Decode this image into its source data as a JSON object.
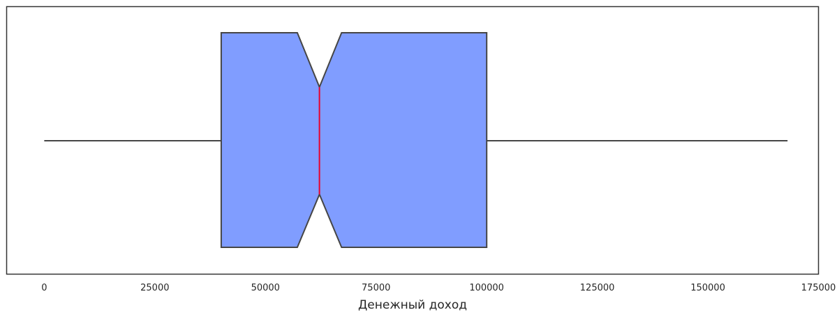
{
  "chart_data": {
    "type": "boxplot",
    "orientation": "horizontal",
    "notched": true,
    "xlabel": "Денежный доход",
    "xlim": [
      -8500,
      175000
    ],
    "x_ticks": [
      0,
      25000,
      50000,
      75000,
      100000,
      125000,
      150000,
      175000
    ],
    "x_tick_labels": [
      "0",
      "25000",
      "50000",
      "75000",
      "100000",
      "125000",
      "150000",
      "175000"
    ],
    "grid": false,
    "box": {
      "whisker_low": 0,
      "q1": 40000,
      "notch_low": 57200,
      "median": 62200,
      "notch_high": 67200,
      "q3": 100000,
      "whisker_high": 168000
    },
    "colors": {
      "box_fill": "#809dff",
      "box_edge": "#454545",
      "median_line": "#e8002a",
      "frame": "#333333",
      "text": "#262626"
    }
  }
}
